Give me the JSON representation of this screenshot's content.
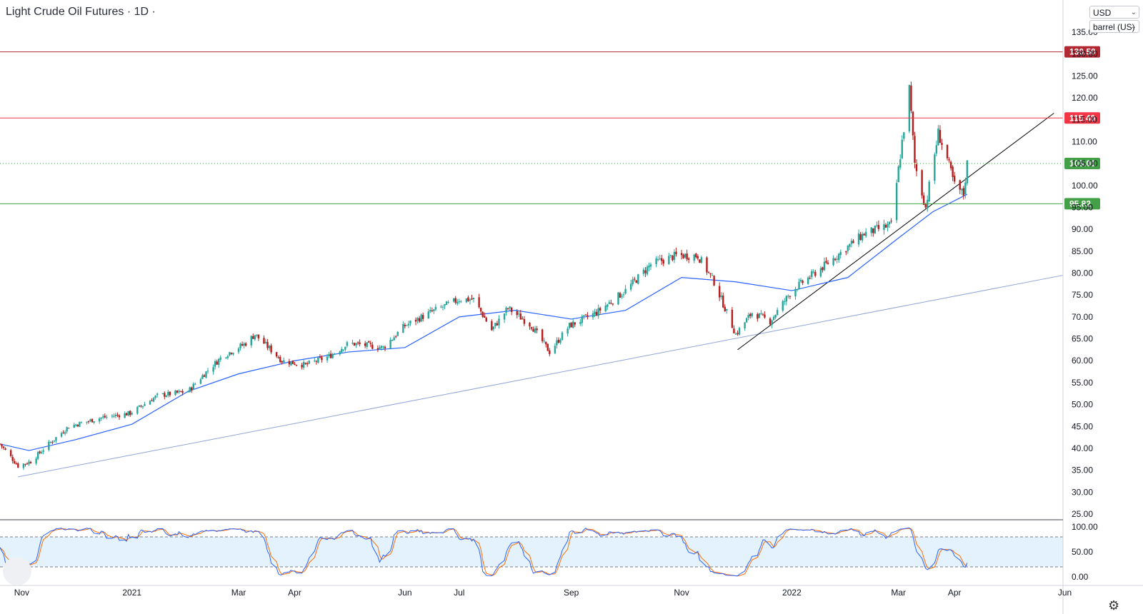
{
  "title": "Light Crude Oil Futures · 1D ·",
  "currency_selector": "USD",
  "unit_selector": "barrel (US)",
  "settings_icon": "gear-icon",
  "colors": {
    "up": "#26a69a",
    "down": "#b71c1c",
    "ma": "#2962ff",
    "resistance_dark": "#b22833",
    "resistance": "#f23645",
    "current": "#43a047",
    "support": "#43a047",
    "stoch_k": "#2962ff",
    "stoch_d": "#ff6d00",
    "stoch_band": "#e3f2fd"
  },
  "chart_data": [
    {
      "type": "candlestick",
      "title": "Light Crude Oil Futures · 1D ·",
      "xlabel": "",
      "ylabel": "",
      "ylim": [
        25,
        135
      ],
      "y_ticks": [
        "25.00",
        "30.00",
        "35.00",
        "40.00",
        "45.00",
        "50.00",
        "55.00",
        "60.00",
        "65.00",
        "70.00",
        "75.00",
        "80.00",
        "85.00",
        "90.00",
        "95.00",
        "100.00",
        "105.00",
        "110.00",
        "115.00",
        "120.00",
        "125.00",
        "130.00",
        "135.00"
      ],
      "x_ticks": [
        "Nov",
        "2021",
        "Mar",
        "Apr",
        "Jun",
        "Jul",
        "Sep",
        "Nov",
        "2022",
        "Mar",
        "Apr",
        "Jun"
      ],
      "x_tick_dates": [
        "2020-11-01",
        "2021-01-01",
        "2021-03-01",
        "2021-04-01",
        "2021-06-01",
        "2021-07-01",
        "2021-09-01",
        "2021-11-01",
        "2022-01-01",
        "2022-03-01",
        "2022-04-01",
        "2022-06-01"
      ],
      "xlim": [
        "2020-10-20",
        "2022-05-31"
      ],
      "price_path": [
        [
          "2020-10-20",
          41
        ],
        [
          "2020-10-30",
          36
        ],
        [
          "2020-11-06",
          37
        ],
        [
          "2020-11-16",
          41
        ],
        [
          "2020-11-27",
          45
        ],
        [
          "2020-12-15",
          47
        ],
        [
          "2020-12-31",
          48
        ],
        [
          "2021-01-15",
          52
        ],
        [
          "2021-02-01",
          53
        ],
        [
          "2021-02-10",
          57
        ],
        [
          "2021-02-20",
          61
        ],
        [
          "2021-03-05",
          64
        ],
        [
          "2021-03-10",
          66
        ],
        [
          "2021-03-25",
          60
        ],
        [
          "2021-04-07",
          59
        ],
        [
          "2021-04-20",
          61
        ],
        [
          "2021-05-01",
          64
        ],
        [
          "2021-05-20",
          63
        ],
        [
          "2021-06-01",
          68
        ],
        [
          "2021-06-15",
          71
        ],
        [
          "2021-07-01",
          74
        ],
        [
          "2021-07-09",
          74
        ],
        [
          "2021-07-19",
          67
        ],
        [
          "2021-07-28",
          72
        ],
        [
          "2021-08-10",
          68
        ],
        [
          "2021-08-20",
          62
        ],
        [
          "2021-08-31",
          68
        ],
        [
          "2021-09-15",
          71
        ],
        [
          "2021-10-01",
          76
        ],
        [
          "2021-10-15",
          82
        ],
        [
          "2021-10-29",
          84
        ],
        [
          "2021-11-10",
          84
        ],
        [
          "2021-11-19",
          78
        ],
        [
          "2021-12-01",
          66
        ],
        [
          "2021-12-10",
          71
        ],
        [
          "2021-12-20",
          69
        ],
        [
          "2022-01-01",
          76
        ],
        [
          "2022-01-20",
          82
        ],
        [
          "2022-02-10",
          89
        ],
        [
          "2022-02-25",
          91
        ],
        [
          "2022-03-03",
          110
        ],
        [
          "2022-03-07",
          122
        ],
        [
          "2022-03-10",
          105
        ],
        [
          "2022-03-16",
          95
        ],
        [
          "2022-03-23",
          112
        ],
        [
          "2022-03-28",
          106
        ],
        [
          "2022-04-01",
          100
        ],
        [
          "2022-04-06",
          98
        ],
        [
          "2022-04-08",
          105
        ]
      ],
      "series": [
        {
          "name": "",
          "kind": "moving_average",
          "points": [
            [
              "2020-10-20",
              41
            ],
            [
              "2020-11-05",
              39.5
            ],
            [
              "2020-12-01",
              42
            ],
            [
              "2021-01-01",
              45.5
            ],
            [
              "2021-02-01",
              53
            ],
            [
              "2021-03-01",
              57
            ],
            [
              "2021-04-01",
              60
            ],
            [
              "2021-05-01",
              62
            ],
            [
              "2021-06-01",
              63
            ],
            [
              "2021-07-01",
              70
            ],
            [
              "2021-08-01",
              71.5
            ],
            [
              "2021-09-01",
              69.5
            ],
            [
              "2021-10-01",
              71.5
            ],
            [
              "2021-11-01",
              79
            ],
            [
              "2021-12-01",
              78
            ],
            [
              "2022-01-01",
              76
            ],
            [
              "2022-02-01",
              79
            ],
            [
              "2022-03-01",
              88
            ],
            [
              "2022-03-20",
              94
            ],
            [
              "2022-04-08",
              98
            ]
          ]
        }
      ],
      "trendlines": [
        {
          "from": [
            "2020-10-30",
            33.5
          ],
          "to": [
            "2022-05-31",
            79.5
          ],
          "color": "#90a4d8"
        },
        {
          "from": [
            "2021-12-02",
            62.5
          ],
          "to": [
            "2022-05-26",
            116.5
          ],
          "color": "#000000"
        }
      ],
      "horizontal_levels": [
        {
          "value": 130.5,
          "label": "130.50",
          "color": "#b22833",
          "style": "solid"
        },
        {
          "value": 115.4,
          "label": "115.40",
          "color": "#f23645",
          "style": "solid"
        },
        {
          "value": 105.01,
          "label": "105.01",
          "color": "#43a047",
          "style": "dotted"
        },
        {
          "value": 95.82,
          "label": "95.82",
          "color": "#43a047",
          "style": "solid"
        }
      ]
    },
    {
      "type": "line",
      "title": "",
      "ylim": [
        0,
        100
      ],
      "y_ticks": [
        "0.00",
        "50.00",
        "100.00"
      ],
      "bands": [
        20,
        80
      ],
      "series": [
        {
          "name": "",
          "color": "#2962ff",
          "kind": "stochastic_k"
        },
        {
          "name": "",
          "color": "#ff6d00",
          "kind": "stochastic_d"
        }
      ]
    }
  ]
}
